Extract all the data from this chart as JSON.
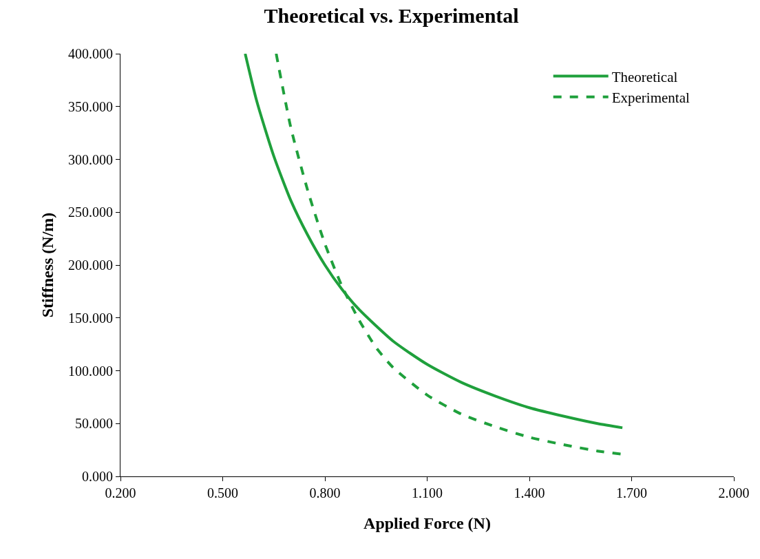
{
  "chart_data": {
    "type": "line",
    "title": "Theoretical vs. Experimental",
    "xlabel": "Applied Force (N)",
    "ylabel": "Stiffness (N/m)",
    "xlim": [
      0.2,
      2.0
    ],
    "ylim": [
      0,
      400
    ],
    "xticks": [
      {
        "value": 0.2,
        "label": "0.200"
      },
      {
        "value": 0.5,
        "label": "0.500"
      },
      {
        "value": 0.8,
        "label": "0.800"
      },
      {
        "value": 1.1,
        "label": "1.100"
      },
      {
        "value": 1.4,
        "label": "1.400"
      },
      {
        "value": 1.7,
        "label": "1.700"
      },
      {
        "value": 2.0,
        "label": "2.000"
      }
    ],
    "yticks": [
      {
        "value": 0,
        "label": "0.000"
      },
      {
        "value": 50,
        "label": "50.000"
      },
      {
        "value": 100,
        "label": "100.000"
      },
      {
        "value": 150,
        "label": "150.000"
      },
      {
        "value": 200,
        "label": "200.000"
      },
      {
        "value": 250,
        "label": "250.000"
      },
      {
        "value": 300,
        "label": "300.000"
      },
      {
        "value": 350,
        "label": "350.000"
      },
      {
        "value": 400,
        "label": "400.000"
      }
    ],
    "legend": "top right",
    "marker": "none",
    "series": [
      {
        "name": "Theoretical",
        "color": "#1fa03c",
        "line_style": "solid",
        "x": [
          0.566,
          0.6,
          0.65,
          0.7,
          0.75,
          0.8,
          0.85,
          0.9,
          1.0,
          1.1,
          1.2,
          1.3,
          1.4,
          1.5,
          1.6,
          1.673
        ],
        "values": [
          400,
          355,
          303,
          261,
          228,
          200,
          177,
          158,
          128,
          106,
          89,
          76,
          65,
          57,
          50,
          46
        ]
      },
      {
        "name": "Experimental",
        "color": "#1fa03c",
        "line_style": "dashed",
        "x": [
          0.657,
          0.7,
          0.75,
          0.8,
          0.85,
          0.9,
          0.95,
          1.0,
          1.1,
          1.2,
          1.3,
          1.4,
          1.5,
          1.6,
          1.673
        ],
        "values": [
          400,
          330,
          270,
          220,
          180,
          148,
          122,
          103,
          77,
          59,
          47,
          37,
          30,
          24,
          21
        ]
      }
    ]
  }
}
